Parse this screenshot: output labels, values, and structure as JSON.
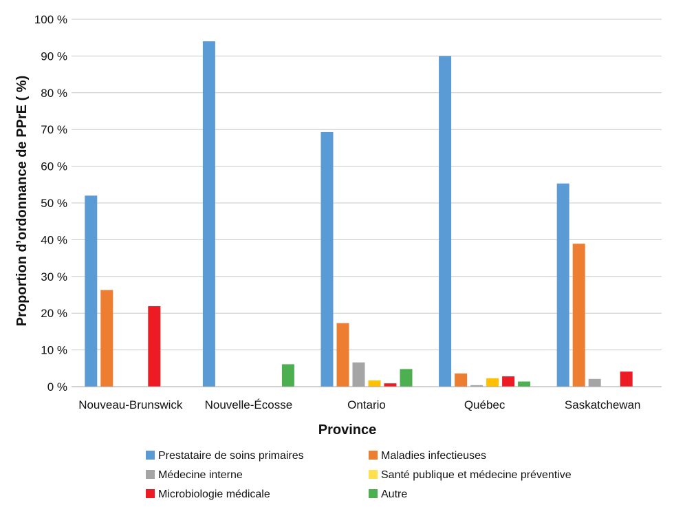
{
  "chart_data": {
    "type": "bar",
    "title": "",
    "xlabel": "Province",
    "ylabel": "Proportion d’ordonnance de PPrE ( %)",
    "ylim": [
      0,
      100
    ],
    "yticks": [
      0,
      10,
      20,
      30,
      40,
      50,
      60,
      70,
      80,
      90,
      100
    ],
    "ytick_labels": [
      "0 %",
      "10 %",
      "20 %",
      "30 %",
      "40 %",
      "50 %",
      "60 %",
      "70 %",
      "80 %",
      "90 %",
      "100 %"
    ],
    "grid": true,
    "legend_position": "bottom",
    "categories": [
      "Nouveau-Brunswick",
      "Nouvelle-Écosse",
      "Ontario",
      "Québec",
      "Saskatchewan"
    ],
    "series": [
      {
        "name": "Prestataire de soins primaires",
        "color": "#5B9BD5",
        "values": [
          52,
          94,
          69.3,
          90,
          55.3
        ]
      },
      {
        "name": "Maladies infectieuses",
        "color": "#ED7D31",
        "values": [
          26.3,
          0,
          17.3,
          3.6,
          38.9
        ]
      },
      {
        "name": "Médecine interne",
        "color": "#A5A5A5",
        "values": [
          0,
          0,
          6.6,
          0.4,
          2.1
        ]
      },
      {
        "name": "Santé publique et médecine préventive",
        "color": "#FFC000",
        "values": [
          0,
          0,
          1.7,
          2.3,
          0
        ]
      },
      {
        "name": "Microbiologie médicale",
        "color": "#ED1C24",
        "values": [
          21.9,
          0,
          0.9,
          2.8,
          4.1
        ]
      },
      {
        "name": "Autre",
        "color": "#4CAF50",
        "values": [
          0,
          6.1,
          4.8,
          1.4,
          0
        ]
      }
    ],
    "legend_swatch_colors": [
      "#5B9BD5",
      "#ED7D31",
      "#A5A5A5",
      "#FFE14D",
      "#ED1C24",
      "#4CAF50"
    ]
  }
}
